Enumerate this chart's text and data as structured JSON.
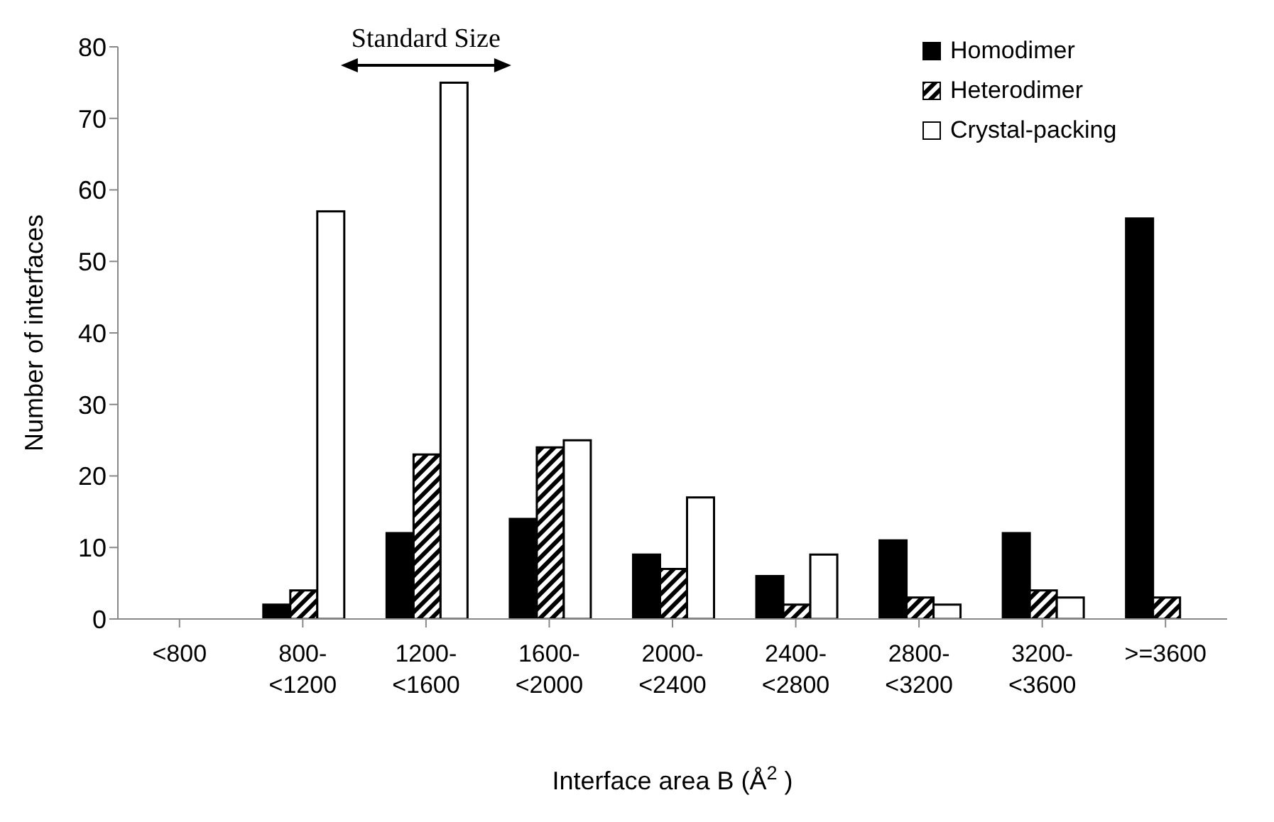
{
  "chart_data": {
    "type": "bar",
    "xlabel": "Interface area B (Å$^{2}$ )",
    "ylabel": "Number of interfaces",
    "categories": [
      "<800",
      "800-<1200",
      "1200-<1600",
      "1600-<2000",
      "2000-<2400",
      "2400-<2800",
      "2800-<3200",
      "3200-<3600",
      ">=3600"
    ],
    "series": [
      {
        "name": "Homodimer",
        "color": "#000000",
        "values": [
          0,
          2,
          12,
          14,
          9,
          6,
          11,
          12,
          56
        ]
      },
      {
        "name": "Heterodimer",
        "color": "#000000",
        "values": [
          0,
          4,
          23,
          24,
          7,
          2,
          3,
          4,
          3
        ]
      },
      {
        "name": "Crystal-packing",
        "color": "#ffffff",
        "values": [
          0,
          57,
          75,
          25,
          17,
          9,
          2,
          3,
          0
        ]
      }
    ],
    "ylim": [
      0,
      80
    ],
    "yticks": [
      0,
      10,
      20,
      30,
      40,
      50,
      60,
      70,
      80
    ],
    "legend": "top right",
    "annotations": [
      "Standard Size"
    ]
  }
}
